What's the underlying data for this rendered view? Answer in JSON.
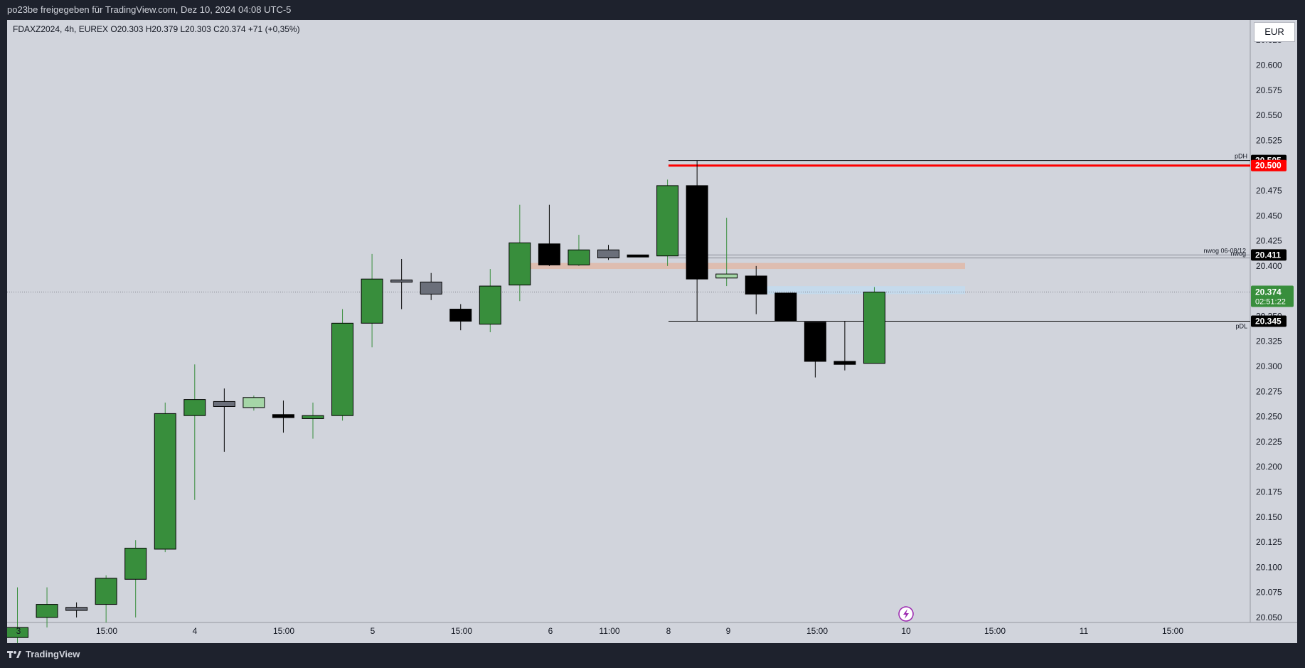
{
  "header": {
    "title": "po23be freigegeben für TradingView.com, Dez 10, 2024 04:08 UTC-5"
  },
  "symbol": {
    "line": "FDAXZ2024, 4h, EUREX  O20.303  H20.379  L20.303  C20.374  +71 (+0,35%)"
  },
  "currency": "EUR",
  "brand": {
    "name": "TradingView",
    "logo_icon": "tradingview-logo-icon"
  },
  "colors": {
    "bull": "#388e3c",
    "bear": "#000000",
    "doji_gray": "#6b6f7a",
    "light_green": "#a5d6a7",
    "red_line": "#ff0000",
    "zone_orange": "#e0b9a8",
    "zone_blue": "#c3dbef"
  },
  "chart_data": {
    "type": "candlestick",
    "title": "",
    "xlabel": "",
    "ylabel": "",
    "ylim": [
      20.045,
      20.645
    ],
    "y_ticks": [
      "20.625",
      "20.600",
      "20.575",
      "20.550",
      "20.525",
      "20.500",
      "20.475",
      "20.450",
      "20.425",
      "20.400",
      "20.375",
      "20.350",
      "20.325",
      "20.300",
      "20.275",
      "20.250",
      "20.225",
      "20.200",
      "20.175",
      "20.150",
      "20.125",
      "20.100",
      "20.075",
      "20.050"
    ],
    "x_ticks": [
      "3",
      "15:00",
      "4",
      "15:00",
      "5",
      "15:00",
      "6",
      "11:00",
      "8",
      "9",
      "15:00",
      "10",
      "15:00",
      "11",
      "15:00"
    ],
    "grid": false,
    "candles": [
      {
        "o": 20.03,
        "h": 20.08,
        "l": 20.02,
        "c": 20.04,
        "color": "bull"
      },
      {
        "o": 20.05,
        "h": 20.08,
        "l": 20.04,
        "c": 20.063,
        "color": "bull"
      },
      {
        "o": 20.06,
        "h": 20.065,
        "l": 20.05,
        "c": 20.057,
        "color": "gray"
      },
      {
        "o": 20.063,
        "h": 20.092,
        "l": 20.045,
        "c": 20.089,
        "color": "bull"
      },
      {
        "o": 20.088,
        "h": 20.127,
        "l": 20.05,
        "c": 20.119,
        "color": "bull"
      },
      {
        "o": 20.118,
        "h": 20.264,
        "l": 20.115,
        "c": 20.253,
        "color": "bull"
      },
      {
        "o": 20.251,
        "h": 20.302,
        "l": 20.167,
        "c": 20.267,
        "color": "bull"
      },
      {
        "o": 20.265,
        "h": 20.278,
        "l": 20.215,
        "c": 20.26,
        "color": "gray"
      },
      {
        "o": 20.259,
        "h": 20.271,
        "l": 20.256,
        "c": 20.269,
        "color": "light"
      },
      {
        "o": 20.252,
        "h": 20.266,
        "l": 20.234,
        "c": 20.249,
        "color": "bear"
      },
      {
        "o": 20.248,
        "h": 20.264,
        "l": 20.228,
        "c": 20.251,
        "color": "bull"
      },
      {
        "o": 20.251,
        "h": 20.357,
        "l": 20.246,
        "c": 20.343,
        "color": "bull"
      },
      {
        "o": 20.343,
        "h": 20.412,
        "l": 20.319,
        "c": 20.387,
        "color": "bull"
      },
      {
        "o": 20.386,
        "h": 20.407,
        "l": 20.357,
        "c": 20.384,
        "color": "gray"
      },
      {
        "o": 20.384,
        "h": 20.393,
        "l": 20.366,
        "c": 20.372,
        "color": "gray"
      },
      {
        "o": 20.357,
        "h": 20.362,
        "l": 20.336,
        "c": 20.345,
        "color": "bear"
      },
      {
        "o": 20.342,
        "h": 20.397,
        "l": 20.334,
        "c": 20.38,
        "color": "bull"
      },
      {
        "o": 20.381,
        "h": 20.461,
        "l": 20.365,
        "c": 20.423,
        "color": "bull"
      },
      {
        "o": 20.422,
        "h": 20.461,
        "l": 20.4,
        "c": 20.401,
        "color": "bear"
      },
      {
        "o": 20.401,
        "h": 20.431,
        "l": 20.4,
        "c": 20.416,
        "color": "bull"
      },
      {
        "o": 20.416,
        "h": 20.421,
        "l": 20.406,
        "c": 20.408,
        "color": "gray"
      },
      {
        "o": 20.411,
        "h": 20.411,
        "l": 20.41,
        "c": 20.41,
        "color": "bear"
      },
      {
        "o": 20.41,
        "h": 20.486,
        "l": 20.4,
        "c": 20.48,
        "color": "bull"
      },
      {
        "o": 20.48,
        "h": 20.505,
        "l": 20.345,
        "c": 20.387,
        "color": "bear"
      },
      {
        "o": 20.388,
        "h": 20.448,
        "l": 20.38,
        "c": 20.392,
        "color": "light"
      },
      {
        "o": 20.39,
        "h": 20.4,
        "l": 20.352,
        "c": 20.372,
        "color": "bear"
      },
      {
        "o": 20.373,
        "h": 20.373,
        "l": 20.345,
        "c": 20.345,
        "color": "bear"
      },
      {
        "o": 20.344,
        "h": 20.344,
        "l": 20.289,
        "c": 20.305,
        "color": "bear"
      },
      {
        "o": 20.305,
        "h": 20.345,
        "l": 20.296,
        "c": 20.302,
        "color": "bear"
      },
      {
        "o": 20.303,
        "h": 20.379,
        "l": 20.303,
        "c": 20.374,
        "color": "bull"
      }
    ],
    "levels": [
      {
        "name": "pDH",
        "value": 20.505,
        "color": "#000000",
        "tag": "20.505"
      },
      {
        "name": "",
        "value": 20.5,
        "color": "#ff0000",
        "tag": "20.500"
      },
      {
        "name": "nwog 06-08/12",
        "value": 20.411,
        "color": "#888c96",
        "tag": "20.411"
      },
      {
        "name": "nwog",
        "value": 20.408,
        "color": "#888c96",
        "tag": ""
      },
      {
        "name": "pDL",
        "value": 20.345,
        "color": "#000000",
        "tag": "20.345"
      }
    ],
    "zones": [
      {
        "y1": 20.403,
        "y2": 20.397,
        "color": "orange"
      },
      {
        "y1": 20.38,
        "y2": 20.372,
        "color": "blue"
      }
    ],
    "last_price": {
      "value": "20.374",
      "countdown": "02:51:22"
    }
  }
}
